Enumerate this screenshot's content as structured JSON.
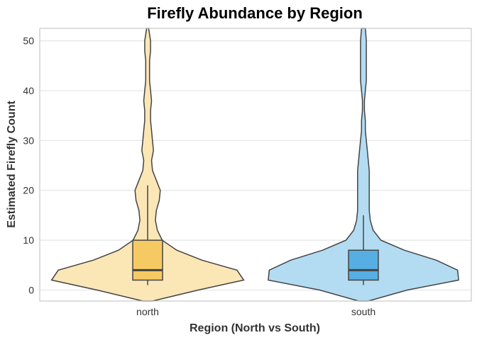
{
  "chart_data": {
    "type": "violin",
    "title": "Firefly Abundance by Region",
    "xlabel": "Region (North vs South)",
    "ylabel": "Estimated Firefly Count",
    "ylim": [
      -2.2,
      52.5
    ],
    "yticks": [
      0,
      10,
      20,
      30,
      40,
      50
    ],
    "grid": true,
    "legend": "none",
    "categories": [
      "north",
      "south"
    ],
    "groups": [
      {
        "name": "north",
        "violin_color": "#fbe6b6",
        "box_color": "#f6ca63",
        "box": {
          "whisker_low": 1,
          "q1": 2,
          "median": 4,
          "q3": 10,
          "whisker_high": 21
        },
        "density": [
          [
            -2.2,
            0.05
          ],
          [
            0,
            0.52
          ],
          [
            2,
            0.99
          ],
          [
            4,
            0.92
          ],
          [
            6,
            0.56
          ],
          [
            8,
            0.3
          ],
          [
            10,
            0.15
          ],
          [
            12,
            0.1
          ],
          [
            14,
            0.08
          ],
          [
            16,
            0.09
          ],
          [
            18,
            0.12
          ],
          [
            20,
            0.13
          ],
          [
            22,
            0.09
          ],
          [
            24,
            0.05
          ],
          [
            26,
            0.04
          ],
          [
            28,
            0.06
          ],
          [
            30,
            0.05
          ],
          [
            32,
            0.04
          ],
          [
            34,
            0.03
          ],
          [
            36,
            0.03
          ],
          [
            38,
            0.04
          ],
          [
            40,
            0.03
          ],
          [
            42,
            0.02
          ],
          [
            44,
            0.02
          ],
          [
            46,
            0.02
          ],
          [
            48,
            0.03
          ],
          [
            50,
            0.03
          ],
          [
            52.5,
            0.01
          ]
        ]
      },
      {
        "name": "south",
        "violin_color": "#b3dcf3",
        "box_color": "#56aee2",
        "box": {
          "whisker_low": 1,
          "q1": 2,
          "median": 4,
          "q3": 8,
          "whisker_high": 15
        },
        "density": [
          [
            -2.2,
            0.05
          ],
          [
            0,
            0.45
          ],
          [
            2,
            0.98
          ],
          [
            4,
            0.97
          ],
          [
            6,
            0.75
          ],
          [
            8,
            0.42
          ],
          [
            10,
            0.18
          ],
          [
            12,
            0.1
          ],
          [
            14,
            0.07
          ],
          [
            16,
            0.06
          ],
          [
            18,
            0.06
          ],
          [
            20,
            0.06
          ],
          [
            22,
            0.06
          ],
          [
            24,
            0.06
          ],
          [
            26,
            0.05
          ],
          [
            28,
            0.04
          ],
          [
            30,
            0.03
          ],
          [
            32,
            0.02
          ],
          [
            34,
            0.02
          ],
          [
            36,
            0.01
          ],
          [
            38,
            0.01
          ],
          [
            40,
            0.02
          ],
          [
            42,
            0.03
          ],
          [
            44,
            0.03
          ],
          [
            46,
            0.03
          ],
          [
            48,
            0.03
          ],
          [
            50,
            0.03
          ],
          [
            52.5,
            0.02
          ]
        ]
      }
    ]
  }
}
